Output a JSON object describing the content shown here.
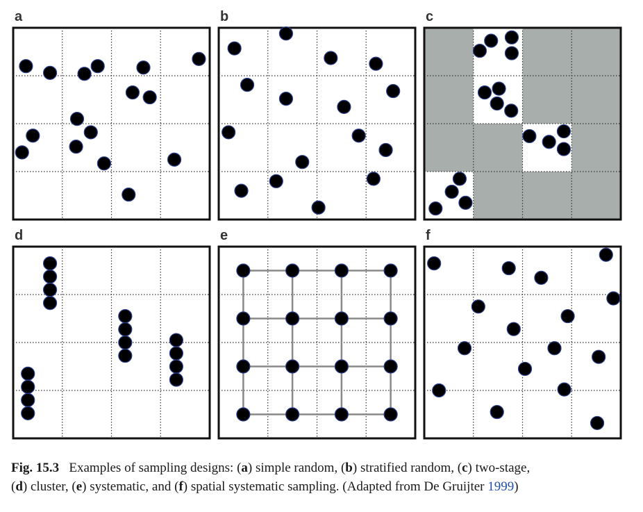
{
  "panels": [
    {
      "letter": "a",
      "design": "simple random",
      "points": [
        [
          0.26,
          0.8
        ],
        [
          0.75,
          0.94
        ],
        [
          1.45,
          0.96
        ],
        [
          1.72,
          0.8
        ],
        [
          2.65,
          0.83
        ],
        [
          3.78,
          0.65
        ],
        [
          2.43,
          1.35
        ],
        [
          2.78,
          1.45
        ],
        [
          1.3,
          1.9
        ],
        [
          0.4,
          2.25
        ],
        [
          0.18,
          2.6
        ],
        [
          1.28,
          2.48
        ],
        [
          1.58,
          2.18
        ],
        [
          1.85,
          2.83
        ],
        [
          3.28,
          2.75
        ],
        [
          2.35,
          3.48
        ]
      ]
    },
    {
      "letter": "b",
      "design": "stratified random",
      "points": [
        [
          0.32,
          0.43
        ],
        [
          1.37,
          0.12
        ],
        [
          2.28,
          0.63
        ],
        [
          3.2,
          0.75
        ],
        [
          0.58,
          1.19
        ],
        [
          1.37,
          1.48
        ],
        [
          2.55,
          1.65
        ],
        [
          3.55,
          1.32
        ],
        [
          0.2,
          2.18
        ],
        [
          2.85,
          2.25
        ],
        [
          3.4,
          2.55
        ],
        [
          1.7,
          2.8
        ],
        [
          0.46,
          3.4
        ],
        [
          1.17,
          3.2
        ],
        [
          2.03,
          3.75
        ],
        [
          3.15,
          3.15
        ]
      ]
    },
    {
      "letter": "c",
      "design": "two-stage",
      "sampled_cells": [
        [
          1,
          0
        ],
        [
          1,
          1
        ],
        [
          2,
          2
        ],
        [
          0,
          3
        ]
      ],
      "points": [
        [
          1.36,
          0.27
        ],
        [
          1.78,
          0.2
        ],
        [
          1.13,
          0.48
        ],
        [
          1.78,
          0.53
        ],
        [
          1.23,
          1.35
        ],
        [
          1.52,
          1.27
        ],
        [
          1.48,
          1.58
        ],
        [
          1.77,
          1.73
        ],
        [
          2.14,
          2.26
        ],
        [
          2.54,
          2.38
        ],
        [
          2.84,
          2.16
        ],
        [
          2.84,
          2.53
        ],
        [
          0.72,
          3.15
        ],
        [
          0.56,
          3.42
        ],
        [
          0.84,
          3.65
        ],
        [
          0.23,
          3.77
        ]
      ]
    },
    {
      "letter": "d",
      "design": "cluster",
      "clusters": [
        [
          0.75,
          0.35
        ],
        [
          0.3,
          2.65
        ],
        [
          2.28,
          1.45
        ],
        [
          3.32,
          1.95
        ]
      ],
      "cluster_size": 4
    },
    {
      "letter": "e",
      "design": "systematic",
      "grid_positions": [
        0.5,
        1.5,
        2.5,
        3.5
      ]
    },
    {
      "letter": "f",
      "design": "spatial systematic",
      "points": [
        [
          0.2,
          0.35
        ],
        [
          1.72,
          0.45
        ],
        [
          2.38,
          0.65
        ],
        [
          3.7,
          0.17
        ],
        [
          1.1,
          1.25
        ],
        [
          2.92,
          1.45
        ],
        [
          3.85,
          1.08
        ],
        [
          1.82,
          1.72
        ],
        [
          0.82,
          2.12
        ],
        [
          2.65,
          2.12
        ],
        [
          3.55,
          2.3
        ],
        [
          2.05,
          2.55
        ],
        [
          0.3,
          3.0
        ],
        [
          2.85,
          2.98
        ],
        [
          1.48,
          3.45
        ],
        [
          3.52,
          3.68
        ]
      ]
    }
  ],
  "caption": {
    "label": "Fig. 15.3",
    "intro": "Examples of sampling designs: (",
    "items": [
      {
        "letter": "a",
        "text": "simple random, ("
      },
      {
        "letter": "b",
        "text": "stratified random, ("
      },
      {
        "letter": "c",
        "text": "two-stage,"
      },
      {
        "letter": "d",
        "text": "cluster, ("
      },
      {
        "letter": "e",
        "text": "systematic, and ("
      },
      {
        "letter": "f",
        "text": "spatial systematic sampling. (Adapted from De Gruijter "
      }
    ],
    "ref_year": "1999",
    "close": ")"
  },
  "colors": {
    "dot": "#000000",
    "dot_ring": "#2a3f8f",
    "cell_gray": "#a8aeac",
    "frame": "#111111",
    "grid": "#333333"
  }
}
